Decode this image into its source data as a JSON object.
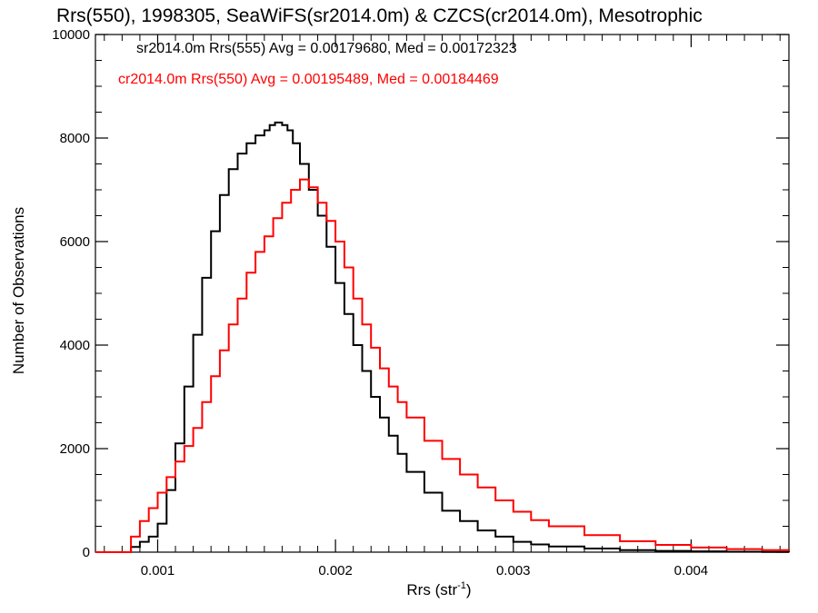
{
  "chart_data": {
    "type": "line",
    "title": "Rrs(550), 1998305, SeaWiFS(sr2014.0m) & CZCS(cr2014.0m), Mesotrophic",
    "xlabel": "Rrs (str",
    "xlabel_sup": "-1",
    "xlabel_close": ")",
    "ylabel": "Number of Observations",
    "xlim": [
      0.00065,
      0.00455
    ],
    "ylim": [
      0,
      10000
    ],
    "grid": false,
    "legend_position": "top-left",
    "xticks": [
      {
        "value": 0.001,
        "label": "0.001"
      },
      {
        "value": 0.002,
        "label": "0.002"
      },
      {
        "value": 0.003,
        "label": "0.003"
      },
      {
        "value": 0.004,
        "label": "0.004"
      }
    ],
    "yticks": [
      {
        "value": 0,
        "label": "0"
      },
      {
        "value": 2000,
        "label": "2000"
      },
      {
        "value": 4000,
        "label": "4000"
      },
      {
        "value": 6000,
        "label": "6000"
      },
      {
        "value": 8000,
        "label": "8000"
      },
      {
        "value": 10000,
        "label": "10000"
      }
    ],
    "series": [
      {
        "name": "sr2014.0m Rrs(555)",
        "legend_text": "sr2014.0m Rrs(555) Avg = 0.00179680, Med = 0.00172323",
        "color": "#000000",
        "x": [
          0.00065,
          0.0008,
          0.00085,
          0.0009,
          0.00095,
          0.001,
          0.00105,
          0.0011,
          0.00115,
          0.0012,
          0.00125,
          0.0013,
          0.00135,
          0.0014,
          0.00145,
          0.0015,
          0.00155,
          0.0016,
          0.00163,
          0.00166,
          0.0017,
          0.00173,
          0.00176,
          0.0018,
          0.00185,
          0.0019,
          0.00195,
          0.002,
          0.00205,
          0.0021,
          0.00215,
          0.0022,
          0.00225,
          0.0023,
          0.00235,
          0.0024,
          0.0025,
          0.0026,
          0.0027,
          0.0028,
          0.0029,
          0.003,
          0.0031,
          0.0032,
          0.0034,
          0.0036,
          0.0038,
          0.004,
          0.0042,
          0.0044,
          0.00455
        ],
        "y": [
          0,
          0,
          100,
          200,
          300,
          550,
          1200,
          2100,
          3200,
          4200,
          5300,
          6200,
          6900,
          7400,
          7700,
          7900,
          8050,
          8150,
          8250,
          8300,
          8250,
          8150,
          7900,
          7500,
          7000,
          6500,
          5900,
          5200,
          4600,
          4000,
          3500,
          3000,
          2600,
          2250,
          1900,
          1550,
          1150,
          800,
          600,
          420,
          300,
          200,
          150,
          110,
          70,
          40,
          25,
          15,
          8,
          4,
          2
        ]
      },
      {
        "name": "cr2014.0m Rrs(550)",
        "legend_text": "cr2014.0m Rrs(550) Avg = 0.00195489, Med = 0.00184469",
        "color": "#ff0000",
        "x": [
          0.00065,
          0.0008,
          0.00085,
          0.0009,
          0.00095,
          0.001,
          0.00105,
          0.0011,
          0.00115,
          0.0012,
          0.00125,
          0.0013,
          0.00135,
          0.0014,
          0.00145,
          0.0015,
          0.00155,
          0.0016,
          0.00165,
          0.0017,
          0.00175,
          0.0018,
          0.00185,
          0.0019,
          0.00195,
          0.002,
          0.00205,
          0.0021,
          0.00215,
          0.0022,
          0.00225,
          0.0023,
          0.00235,
          0.0024,
          0.0025,
          0.0026,
          0.0027,
          0.0028,
          0.0029,
          0.003,
          0.0031,
          0.0032,
          0.0034,
          0.0036,
          0.0038,
          0.004,
          0.0042,
          0.0044,
          0.00455
        ],
        "y": [
          0,
          0,
          300,
          600,
          850,
          1150,
          1450,
          1750,
          2050,
          2400,
          2900,
          3400,
          3900,
          4400,
          4900,
          5400,
          5800,
          6100,
          6450,
          6750,
          7000,
          7200,
          7050,
          6750,
          6400,
          6000,
          5500,
          4900,
          4400,
          3950,
          3550,
          3200,
          2900,
          2600,
          2150,
          1800,
          1500,
          1250,
          1000,
          780,
          620,
          500,
          330,
          210,
          140,
          90,
          60,
          40,
          30
        ]
      }
    ]
  }
}
